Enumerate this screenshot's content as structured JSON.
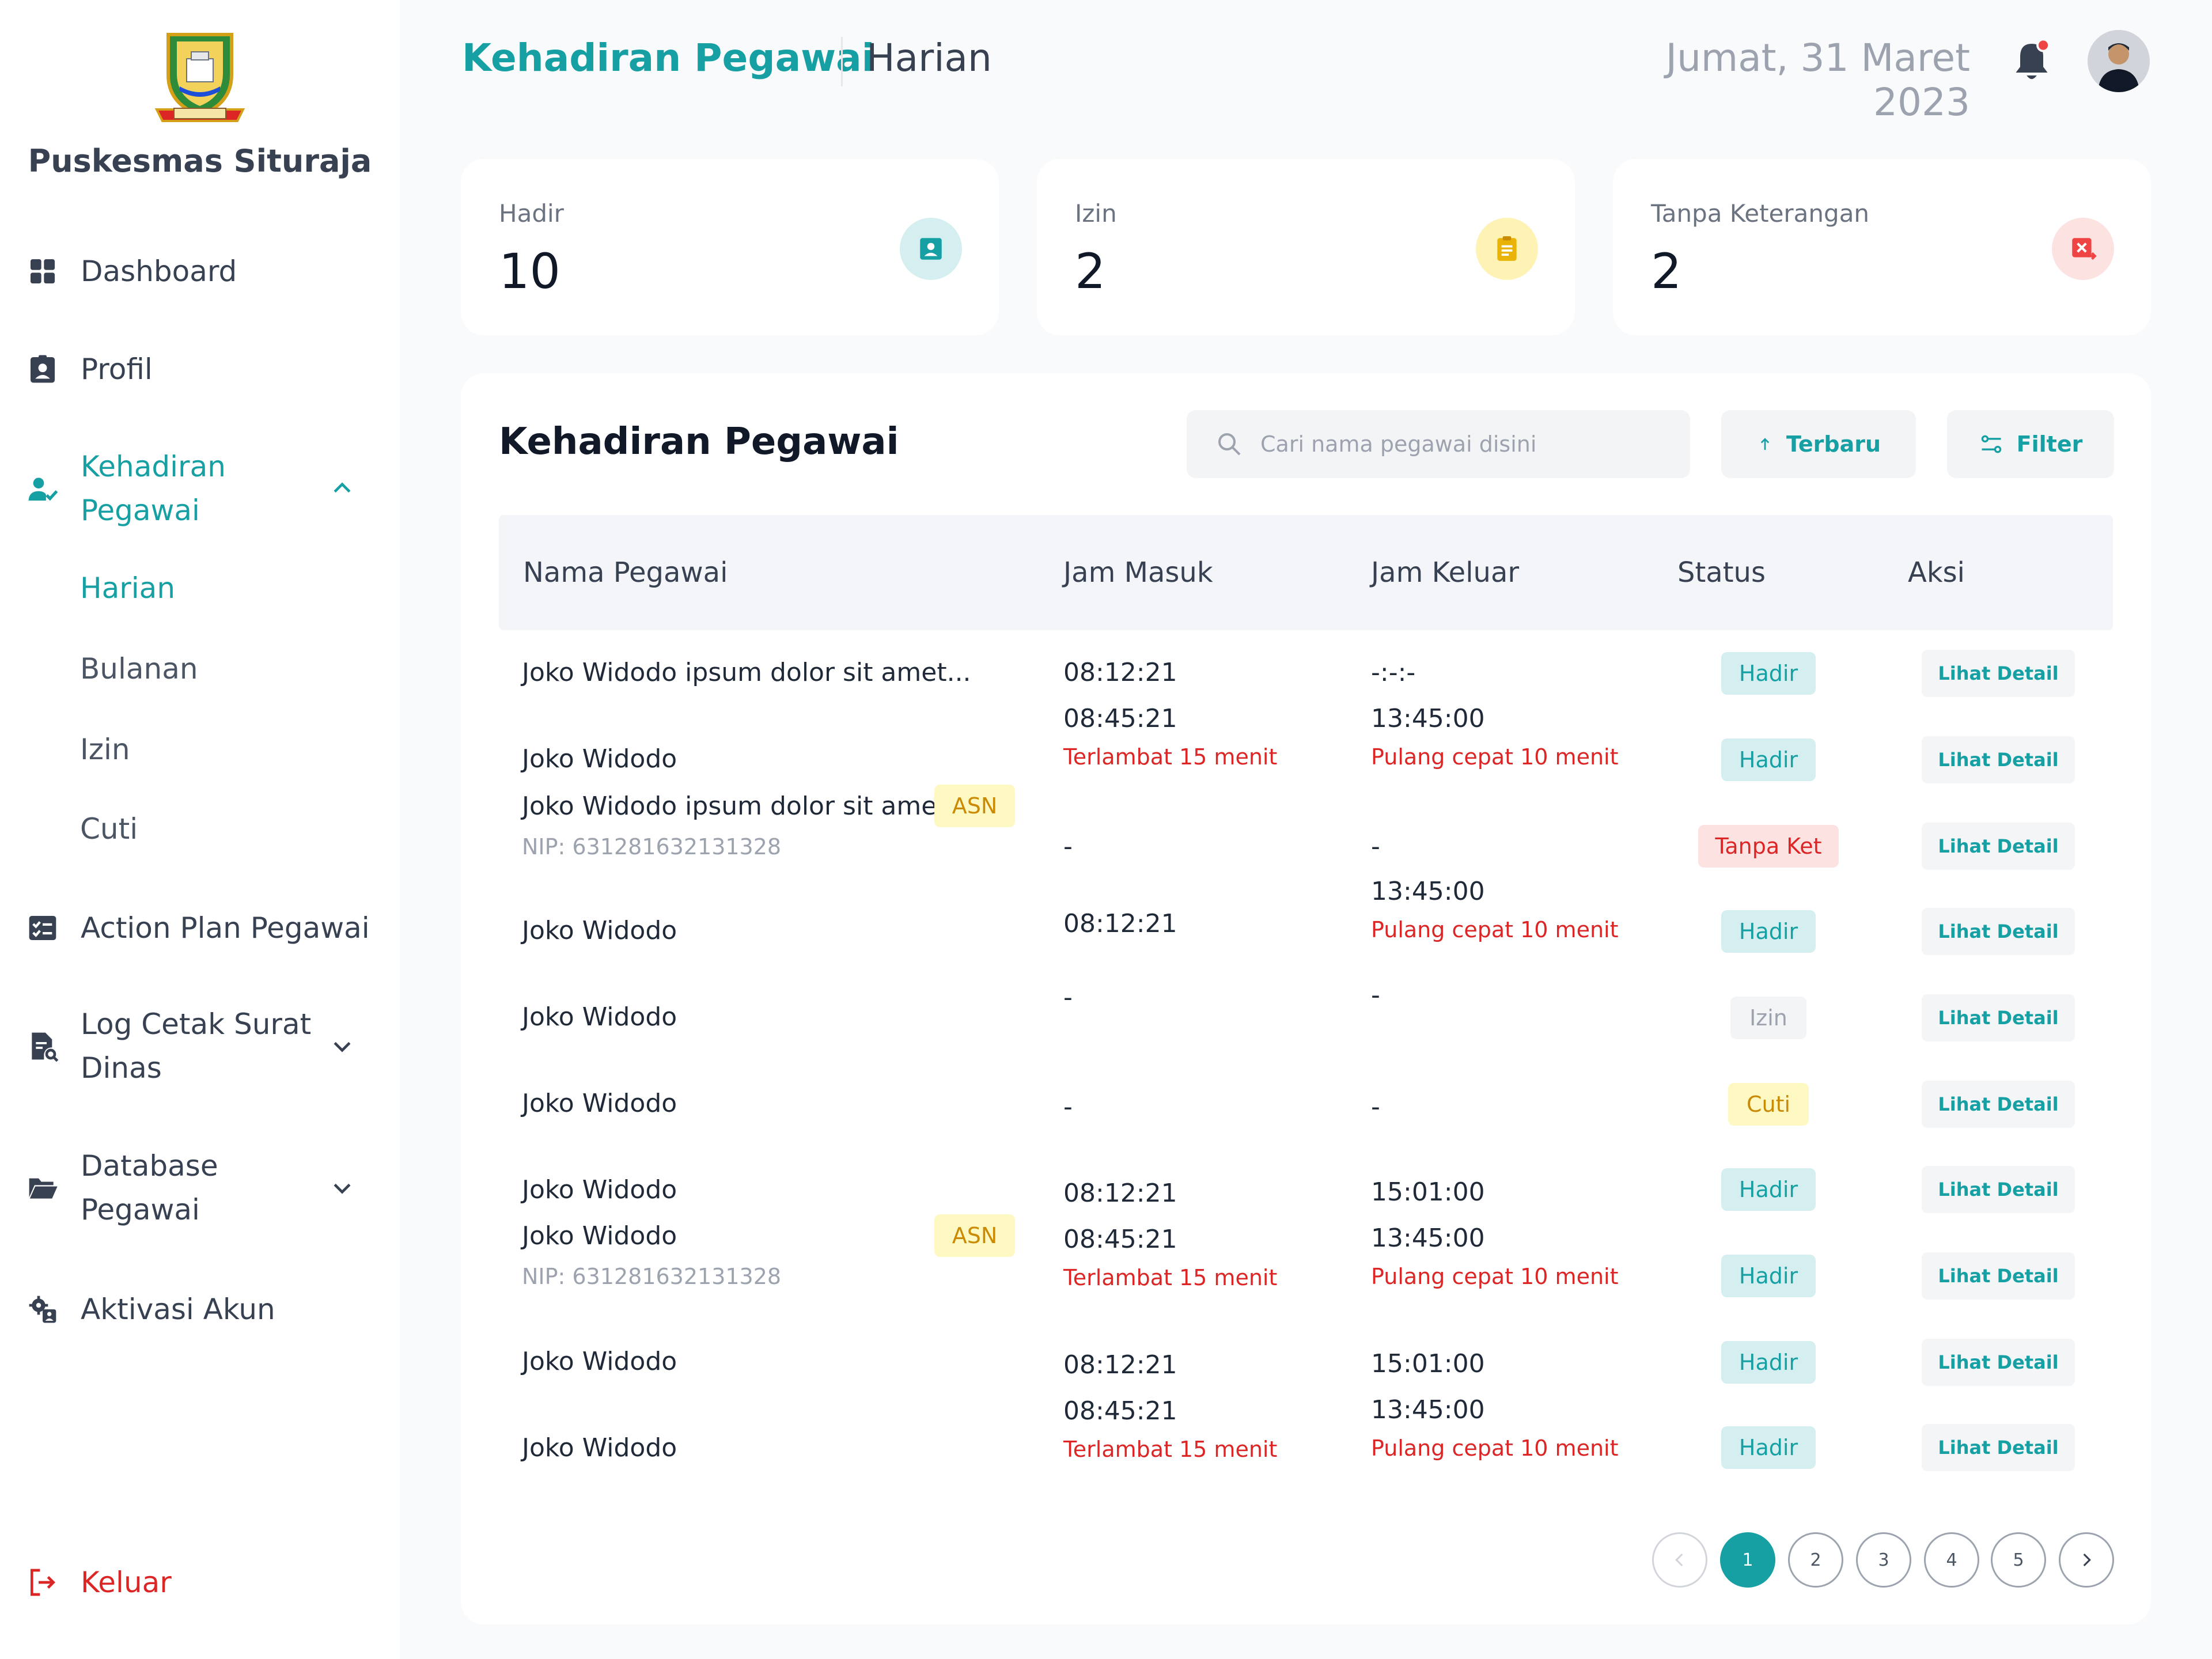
{
  "brand": {
    "name": "Puskesmas Situraja"
  },
  "colors": {
    "accent": "#16a0a4",
    "danger": "#dc2626",
    "warning": "#ca8a04"
  },
  "sidebar": {
    "items": [
      {
        "label": "Dashboard",
        "icon": "grid-icon"
      },
      {
        "label": "Profil",
        "icon": "profile-icon"
      },
      {
        "label": "Kehadiran Pegawai",
        "label_line1": "Kehadiran",
        "label_line2": "Pegawai",
        "icon": "user-check-icon",
        "expanded": true,
        "children": [
          "Harian",
          "Bulanan",
          "Izin",
          "Cuti"
        ]
      },
      {
        "label": "Action Plan Pegawai",
        "icon": "checklist-icon"
      },
      {
        "label": "Log Cetak Surat Dinas",
        "label_line1": "Log Cetak Surat",
        "label_line2": "Dinas",
        "icon": "file-search-icon"
      },
      {
        "label": "Database Pegawai",
        "label_line1": "Database",
        "label_line2": "Pegawai",
        "icon": "folder-icon"
      },
      {
        "label": "Aktivasi Akun",
        "icon": "user-gear-icon"
      }
    ],
    "logout": "Keluar"
  },
  "header": {
    "title": "Kehadiran Pegawai",
    "subtitle": "Harian",
    "date": "Jumat, 31 Maret 2023"
  },
  "stats": [
    {
      "label": "Hadir",
      "value": "10",
      "icon": "badge-icon"
    },
    {
      "label": "Izin",
      "value": "2",
      "icon": "clipboard-icon"
    },
    {
      "label": "Tanpa Keterangan",
      "value": "2",
      "icon": "x-file-icon"
    }
  ],
  "table": {
    "title": "Kehadiran Pegawai",
    "search_placeholder": "Cari nama pegawai disini",
    "sort_label": "Terbaru",
    "filter_label": "Filter",
    "columns": [
      "Nama Pegawai",
      "Jam Masuk",
      "Jam Keluar",
      "Status",
      "Aksi"
    ],
    "cells": {
      "r1_name": "Joko Widodo ipsum dolor sit amet...",
      "r1_in": "08:12:21",
      "r1_out": "-:-:-",
      "r2_name": "Joko Widodo",
      "r2_in": "08:45:21",
      "r2_in_note": "Terlambat 15 menit",
      "r2_out": "13:45:00",
      "r2_out_note": "Pulang cepat 10 menit",
      "r3_name": "Joko Widodo ipsum dolor sit amet...",
      "r3_tag": "ASN",
      "r3_nip": "NIP: 631281632131328",
      "r3_in": "-",
      "r3_out": "-",
      "r4_name": "Joko Widodo",
      "r4_in": "08:12:21",
      "r4_out": "13:45:00",
      "r4_out_note": "Pulang cepat 10 menit",
      "r5_name": "Joko Widodo",
      "r5_in": "-",
      "r5_out": "-",
      "r6_name": "Joko Widodo",
      "r6_in": "-",
      "r6_out": "-",
      "r7_name": "Joko Widodo",
      "r7_in": "08:12:21",
      "r7_out": "15:01:00",
      "r8_name": "Joko Widodo",
      "r8_tag": "ASN",
      "r8_nip": "NIP: 631281632131328",
      "r8_in": "08:45:21",
      "r8_in_note": "Terlambat 15 menit",
      "r8_out": "13:45:00",
      "r8_out_note": "Pulang cepat 10 menit",
      "r9_name": "Joko Widodo",
      "r9_in": "08:12:21",
      "r9_out": "15:01:00",
      "r10_name": "Joko Widodo",
      "r10_in": "08:45:21",
      "r10_in_note": "Terlambat 15 menit",
      "r10_out": "13:45:00",
      "r10_out_note": "Pulang cepat 10 menit"
    },
    "statuses": [
      "Hadir",
      "Hadir",
      "Tanpa Ket",
      "Hadir",
      "Izin",
      "Cuti",
      "Hadir",
      "Hadir",
      "Hadir",
      "Hadir"
    ],
    "action_label": "Lihat Detail"
  },
  "pagination": {
    "pages": [
      "1",
      "2",
      "3",
      "4",
      "5"
    ],
    "current": "1"
  }
}
